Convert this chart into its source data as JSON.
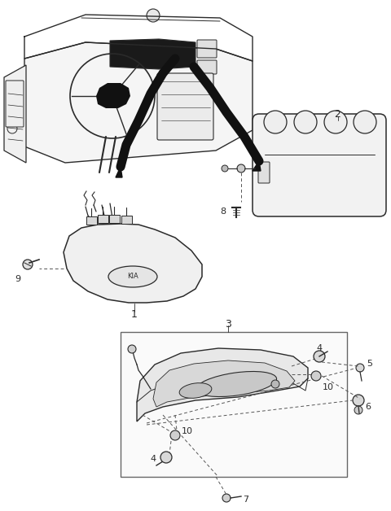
{
  "bg_color": "#ffffff",
  "line_color": "#2a2a2a",
  "fig_width": 4.8,
  "fig_height": 6.28,
  "dpi": 100
}
